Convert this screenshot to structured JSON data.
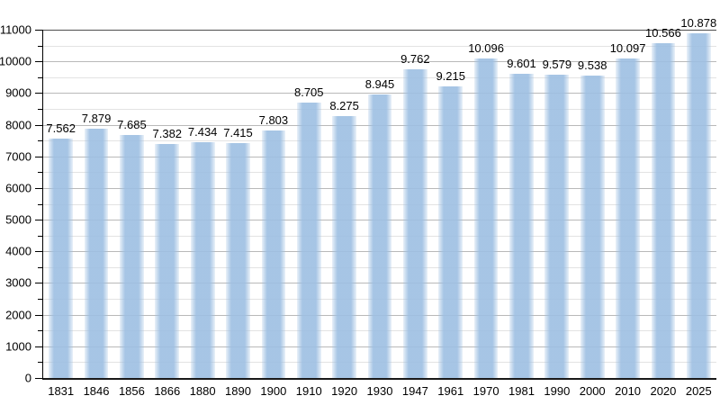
{
  "chart_data": {
    "type": "bar",
    "title": "",
    "xlabel": "",
    "ylabel": "",
    "categories": [
      "1831",
      "1846",
      "1856",
      "1866",
      "1880",
      "1890",
      "1900",
      "1910",
      "1920",
      "1930",
      "1947",
      "1961",
      "1970",
      "1981",
      "1990",
      "2000",
      "2010",
      "2020",
      "2025"
    ],
    "values": [
      7562,
      7879,
      7685,
      7382,
      7434,
      7415,
      7803,
      8705,
      8275,
      8945,
      9762,
      9215,
      10096,
      9601,
      9579,
      9538,
      10097,
      10566,
      10878
    ],
    "value_labels": [
      "7.562",
      "7.879",
      "7.685",
      "7.382",
      "7.434",
      "7.415",
      "7.803",
      "8.705",
      "8.275",
      "8.945",
      "9.762",
      "9.215",
      "10.096",
      "9.601",
      "9.579",
      "9.538",
      "10.097",
      "10.566",
      "10.878"
    ],
    "ylim": [
      0,
      11000
    ],
    "y_major_step": 1000,
    "y_minor_step": 500,
    "y_tick_labels": [
      "0",
      "1000",
      "2000",
      "3000",
      "4000",
      "5000",
      "6000",
      "7000",
      "8000",
      "9000",
      "10000",
      "11000"
    ],
    "grid": "major and minor horizontal",
    "legend": "none",
    "colors": {
      "bar_fill": "#a7c5e5",
      "grid_major": "#b9b9b9",
      "grid_minor": "#e3e3e3",
      "frame_top": "#4d4d4d",
      "axis": "#000000",
      "text": "#000000",
      "background": "#ffffff"
    }
  }
}
